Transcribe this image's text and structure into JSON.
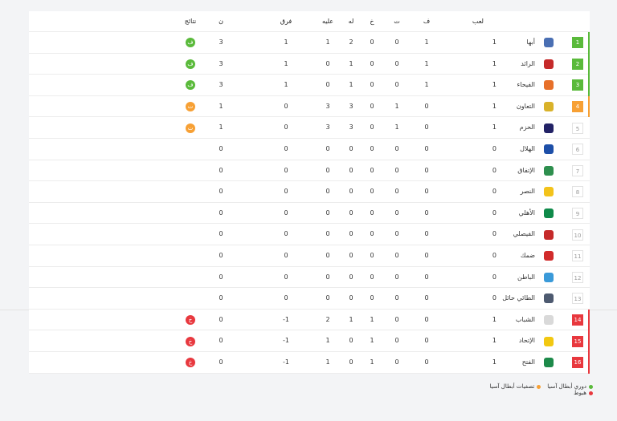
{
  "headers": {
    "played": "لعب",
    "won": "ف",
    "drawn": "ت",
    "lost": "خ",
    "goals_for": "له",
    "goals_against": "عليه",
    "diff": "فرق",
    "points": "ن",
    "form": "نتائج"
  },
  "rows": [
    {
      "rank": "1",
      "team": "أبها",
      "played": "1",
      "won": "1",
      "drawn": "0",
      "lost": "0",
      "gf": "2",
      "ga": "1",
      "diff": "1",
      "pts": "3",
      "form": "ف",
      "zone": "green",
      "crest": "#4a6fb3"
    },
    {
      "rank": "2",
      "team": "الرائد",
      "played": "1",
      "won": "1",
      "drawn": "0",
      "lost": "0",
      "gf": "1",
      "ga": "0",
      "diff": "1",
      "pts": "3",
      "form": "ف",
      "zone": "green",
      "crest": "#c52a2a"
    },
    {
      "rank": "3",
      "team": "الفيحاء",
      "played": "1",
      "won": "1",
      "drawn": "0",
      "lost": "0",
      "gf": "1",
      "ga": "0",
      "diff": "1",
      "pts": "3",
      "form": "ف",
      "zone": "green",
      "crest": "#e7702a"
    },
    {
      "rank": "4",
      "team": "التعاون",
      "played": "1",
      "won": "0",
      "drawn": "1",
      "lost": "0",
      "gf": "3",
      "ga": "3",
      "diff": "0",
      "pts": "1",
      "form": "ت",
      "zone": "orange",
      "crest": "#d9b22a"
    },
    {
      "rank": "5",
      "team": "الحزم",
      "played": "1",
      "won": "0",
      "drawn": "1",
      "lost": "0",
      "gf": "3",
      "ga": "3",
      "diff": "0",
      "pts": "1",
      "form": "ت",
      "zone": "none",
      "crest": "#222266"
    },
    {
      "rank": "6",
      "team": "الهلال",
      "played": "0",
      "won": "0",
      "drawn": "0",
      "lost": "0",
      "gf": "0",
      "ga": "0",
      "diff": "0",
      "pts": "0",
      "form": "",
      "zone": "none",
      "crest": "#1d4fa8"
    },
    {
      "rank": "7",
      "team": "الإتفاق",
      "played": "0",
      "won": "0",
      "drawn": "0",
      "lost": "0",
      "gf": "0",
      "ga": "0",
      "diff": "0",
      "pts": "0",
      "form": "",
      "zone": "none",
      "crest": "#2e8f4e"
    },
    {
      "rank": "8",
      "team": "النصر",
      "played": "0",
      "won": "0",
      "drawn": "0",
      "lost": "0",
      "gf": "0",
      "ga": "0",
      "diff": "0",
      "pts": "0",
      "form": "",
      "zone": "none",
      "crest": "#f3c31b"
    },
    {
      "rank": "9",
      "team": "الأهلي",
      "played": "0",
      "won": "0",
      "drawn": "0",
      "lost": "0",
      "gf": "0",
      "ga": "0",
      "diff": "0",
      "pts": "0",
      "form": "",
      "zone": "none",
      "crest": "#0f8a4a"
    },
    {
      "rank": "10",
      "team": "الفيصلي",
      "played": "0",
      "won": "0",
      "drawn": "0",
      "lost": "0",
      "gf": "0",
      "ga": "0",
      "diff": "0",
      "pts": "0",
      "form": "",
      "zone": "none",
      "crest": "#c52a2a"
    },
    {
      "rank": "11",
      "team": "ضمك",
      "played": "0",
      "won": "0",
      "drawn": "0",
      "lost": "0",
      "gf": "0",
      "ga": "0",
      "diff": "0",
      "pts": "0",
      "form": "",
      "zone": "none",
      "crest": "#d12b2b"
    },
    {
      "rank": "12",
      "team": "الباطن",
      "played": "0",
      "won": "0",
      "drawn": "0",
      "lost": "0",
      "gf": "0",
      "ga": "0",
      "diff": "0",
      "pts": "0",
      "form": "",
      "zone": "none",
      "crest": "#3a9ad9"
    },
    {
      "rank": "13",
      "team": "الطائي حائل",
      "played": "0",
      "won": "0",
      "drawn": "0",
      "lost": "0",
      "gf": "0",
      "ga": "0",
      "diff": "0",
      "pts": "0",
      "form": "",
      "zone": "none",
      "crest": "#4d5a70"
    },
    {
      "rank": "14",
      "team": "الشباب",
      "played": "1",
      "won": "0",
      "drawn": "0",
      "lost": "1",
      "gf": "1",
      "ga": "2",
      "diff": "-1",
      "pts": "0",
      "form": "خ",
      "zone": "red",
      "crest": "#d9d9d9"
    },
    {
      "rank": "15",
      "team": "الإتحاد",
      "played": "1",
      "won": "0",
      "drawn": "0",
      "lost": "1",
      "gf": "0",
      "ga": "1",
      "diff": "-1",
      "pts": "0",
      "form": "خ",
      "zone": "red",
      "crest": "#f2c811"
    },
    {
      "rank": "16",
      "team": "الفتح",
      "played": "1",
      "won": "0",
      "drawn": "0",
      "lost": "1",
      "gf": "0",
      "ga": "1",
      "diff": "-1",
      "pts": "0",
      "form": "خ",
      "zone": "red",
      "crest": "#1d8a4a"
    }
  ],
  "form_colors": {
    "ف": "#5aba3b",
    "ت": "#f7a034",
    "خ": "#e8383e"
  },
  "legend": [
    {
      "label": "دوري أبطال آسيا",
      "color": "#5aba3b"
    },
    {
      "label": "تصفيات أبطال آسيا",
      "color": "#f7a034"
    },
    {
      "label": "هبوط",
      "color": "#e8383e"
    }
  ]
}
